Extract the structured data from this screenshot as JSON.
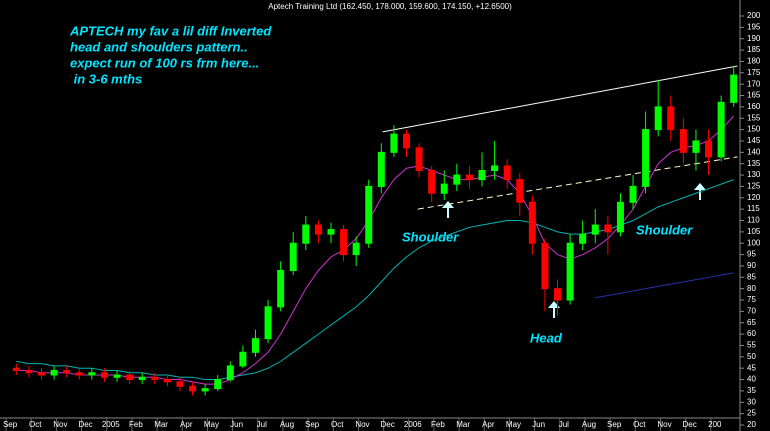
{
  "chart_data": {
    "type": "candlestick",
    "title": "Aptech Training Ltd (162.450, 178.000, 159.600, 174.150, +12.6500)",
    "annotations": [
      "APTECH my fav a lil diff Inverted",
      "head and shoulders pattern..",
      "expect run of 100 rs frm here...",
      " in 3-6 mths",
      "Shoulder",
      "Head",
      "Shoulder"
    ],
    "x": [
      0.25,
      0.75,
      1.25,
      1.75,
      2.25,
      2.75,
      3.25,
      3.75,
      4.25,
      4.75,
      5.25,
      5.75,
      6.25,
      6.75,
      7.25,
      7.75,
      8.25,
      8.75,
      9.25,
      9.75,
      10.25,
      10.75,
      11.25,
      11.75,
      12.25,
      12.75,
      13.25,
      13.75,
      14.25,
      14.75,
      15.25,
      15.75,
      16.25,
      16.75,
      17.25,
      17.75,
      18.25,
      18.75,
      19.25,
      19.75,
      20.25,
      20.75,
      21.25,
      21.75,
      22.25,
      22.75,
      23.25,
      23.75,
      24.25,
      24.75,
      25.25,
      25.75,
      26.25,
      26.75,
      27.25,
      27.75,
      28.25,
      28.75
    ],
    "open": [
      45,
      44,
      43,
      42,
      44,
      43,
      42,
      43,
      41,
      42,
      40,
      41,
      40,
      39,
      37,
      35,
      36,
      40,
      46,
      52,
      58,
      72,
      88,
      100,
      108,
      104,
      106,
      95,
      100,
      125,
      140,
      148,
      142,
      132,
      122,
      126,
      130,
      128,
      132,
      134,
      128,
      118,
      100,
      80,
      75,
      100,
      104,
      108,
      105,
      118,
      125,
      150,
      160,
      150,
      140,
      145,
      138,
      162
    ],
    "high": [
      47,
      46,
      45,
      46,
      46,
      45,
      45,
      45,
      44,
      44,
      43,
      43,
      42,
      41,
      39,
      38,
      42,
      48,
      55,
      62,
      75,
      92,
      105,
      112,
      110,
      109,
      108,
      103,
      128,
      144,
      152,
      150,
      144,
      134,
      132,
      135,
      134,
      140,
      145,
      137,
      131,
      121,
      102,
      84,
      104,
      110,
      115,
      112,
      122,
      130,
      158,
      172,
      165,
      155,
      150,
      150,
      165,
      178
    ],
    "low": [
      42,
      41,
      40,
      40,
      41,
      40,
      40,
      39,
      39,
      38,
      38,
      38,
      37,
      35,
      33,
      33,
      35,
      39,
      45,
      50,
      56,
      70,
      86,
      97,
      100,
      100,
      92,
      90,
      98,
      122,
      138,
      138,
      129,
      118,
      119,
      123,
      124,
      125,
      128,
      124,
      112,
      95,
      70,
      68,
      73,
      97,
      100,
      95,
      103,
      115,
      122,
      147,
      145,
      135,
      132,
      130,
      136,
      160
    ],
    "close": [
      44,
      43,
      42,
      44,
      43,
      42,
      43,
      41,
      42,
      40,
      41,
      40,
      39,
      37,
      35,
      36,
      40,
      46,
      52,
      58,
      72,
      88,
      100,
      108,
      104,
      106,
      95,
      100,
      125,
      140,
      148,
      142,
      132,
      122,
      126,
      130,
      128,
      132,
      134,
      128,
      118,
      100,
      80,
      75,
      100,
      104,
      108,
      105,
      118,
      125,
      150,
      160,
      150,
      140,
      145,
      138,
      162,
      174
    ],
    "up_color": "#00ff00",
    "down_color": "#ff0000",
    "lines": [
      {
        "color": "#00b3b3",
        "values": [
          48,
          47,
          47,
          46,
          46,
          45,
          45,
          44,
          44,
          43,
          43,
          42,
          42,
          41,
          41,
          40,
          40,
          41,
          42,
          43,
          45,
          48,
          52,
          56,
          60,
          64,
          68,
          72,
          77,
          83,
          89,
          94,
          98,
          101,
          103,
          105,
          107,
          108,
          109,
          110,
          110,
          109,
          107,
          105,
          104,
          104,
          105,
          106,
          108,
          110,
          113,
          116,
          118,
          120,
          122,
          124,
          126,
          128
        ]
      },
      {
        "color": "#cc33cc",
        "values": [
          44,
          44,
          43,
          43,
          43,
          42,
          42,
          42,
          42,
          41,
          41,
          41,
          40,
          40,
          39,
          38,
          38,
          40,
          43,
          47,
          52,
          60,
          70,
          80,
          88,
          94,
          97,
          102,
          110,
          120,
          128,
          133,
          134,
          132,
          130,
          128,
          128,
          129,
          130,
          128,
          122,
          112,
          100,
          95,
          93,
          95,
          98,
          102,
          108,
          115,
          125,
          135,
          140,
          142,
          143,
          145,
          150,
          156
        ]
      },
      {
        "color": "#2233aa",
        "values": [
          null,
          null,
          null,
          null,
          null,
          null,
          null,
          null,
          null,
          null,
          null,
          null,
          null,
          null,
          null,
          null,
          null,
          null,
          null,
          null,
          null,
          null,
          null,
          null,
          null,
          null,
          null,
          null,
          null,
          null,
          null,
          null,
          null,
          null,
          null,
          null,
          null,
          null,
          null,
          null,
          null,
          null,
          null,
          null,
          null,
          null,
          76,
          77,
          78,
          79,
          80,
          81,
          82,
          83,
          84,
          85,
          86,
          87
        ]
      }
    ],
    "trendlines": [
      {
        "color": "#ffffff",
        "dash": false,
        "x": [
          14.8,
          28.9
        ],
        "y": [
          149,
          178
        ]
      },
      {
        "color": "#ffffcc",
        "dash": true,
        "x": [
          16.2,
          28.9
        ],
        "y": [
          115,
          138
        ]
      }
    ],
    "xlim": [
      -0.4,
      29.0
    ],
    "xticks": [
      {
        "value": 0,
        "label": "Sep"
      },
      {
        "value": 1,
        "label": "Oct"
      },
      {
        "value": 2,
        "label": "Nov"
      },
      {
        "value": 3,
        "label": "Dec"
      },
      {
        "value": 4,
        "label": "2005"
      },
      {
        "value": 5,
        "label": "Feb"
      },
      {
        "value": 6,
        "label": "Mar"
      },
      {
        "value": 7,
        "label": "Apr"
      },
      {
        "value": 8,
        "label": "May"
      },
      {
        "value": 9,
        "label": "Jun"
      },
      {
        "value": 10,
        "label": "Jul"
      },
      {
        "value": 11,
        "label": "Aug"
      },
      {
        "value": 12,
        "label": "Sep"
      },
      {
        "value": 13,
        "label": "Oct"
      },
      {
        "value": 14,
        "label": "Nov"
      },
      {
        "value": 15,
        "label": "Dec"
      },
      {
        "value": 16,
        "label": "2006"
      },
      {
        "value": 17,
        "label": "Feb"
      },
      {
        "value": 18,
        "label": "Mar"
      },
      {
        "value": 19,
        "label": "Apr"
      },
      {
        "value": 20,
        "label": "May"
      },
      {
        "value": 21,
        "label": "Jun"
      },
      {
        "value": 22,
        "label": "Jul"
      },
      {
        "value": 23,
        "label": "Aug"
      },
      {
        "value": 24,
        "label": "Sep"
      },
      {
        "value": 25,
        "label": "Oct"
      },
      {
        "value": 26,
        "label": "Nov"
      },
      {
        "value": 27,
        "label": "Dec"
      },
      {
        "value": 28,
        "label": "200"
      }
    ],
    "ylim": [
      20,
      200
    ],
    "yticks": [
      20,
      25,
      30,
      35,
      40,
      45,
      50,
      55,
      60,
      65,
      70,
      75,
      80,
      85,
      90,
      95,
      100,
      105,
      110,
      115,
      120,
      125,
      130,
      135,
      140,
      145,
      150,
      155,
      160,
      165,
      170,
      175,
      180,
      185,
      190,
      195,
      200
    ]
  }
}
